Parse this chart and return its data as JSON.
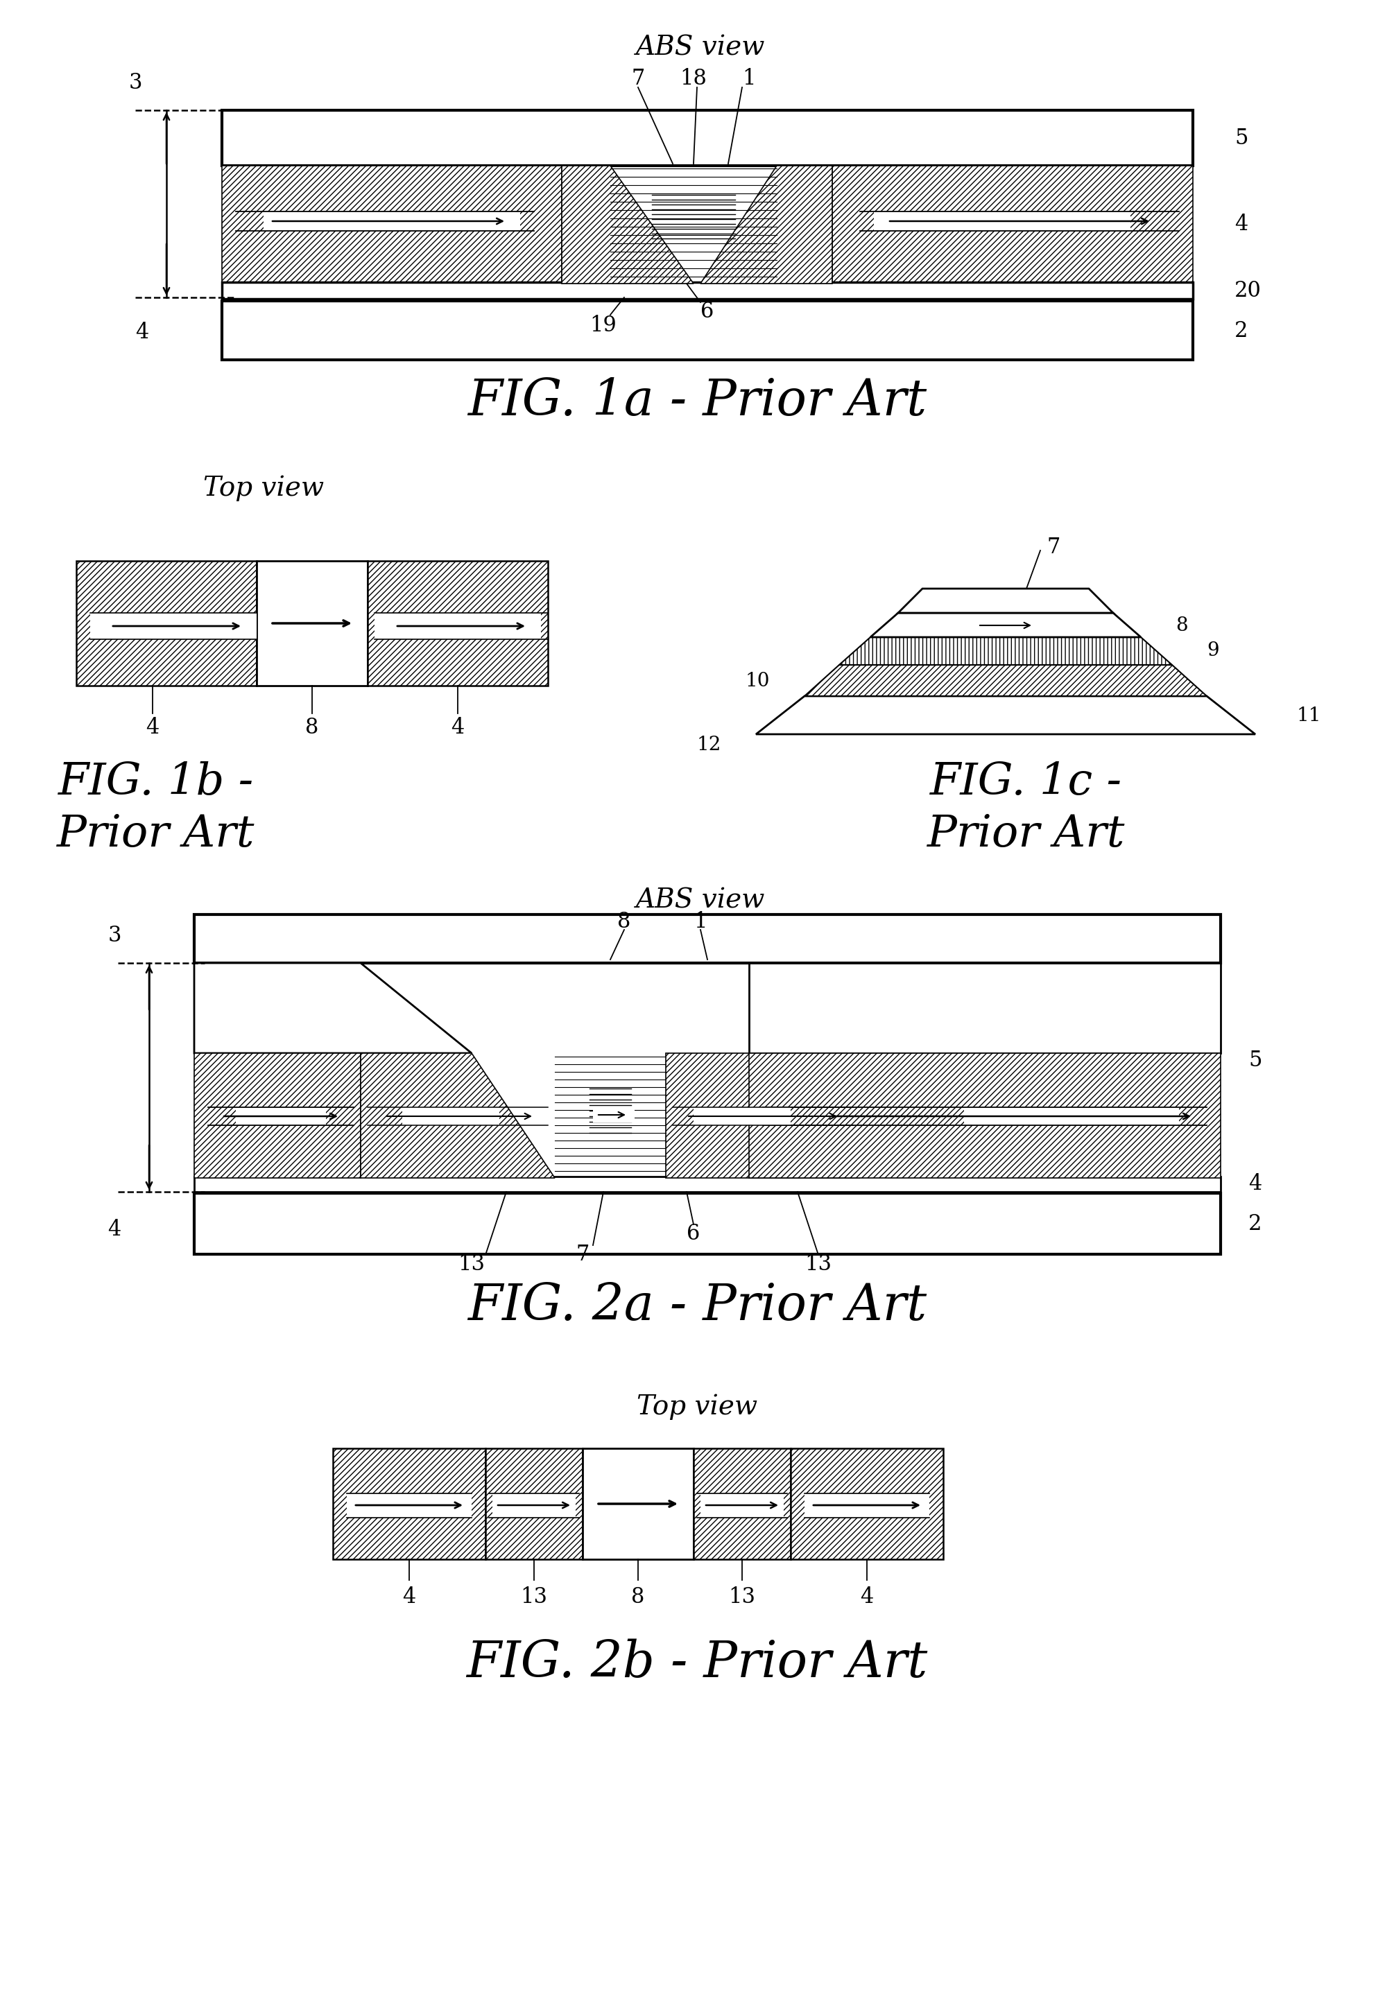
{
  "bg_color": "#ffffff",
  "fig1a_abs_title": "ABS view",
  "fig1a_caption": "FIG. 1a - Prior Art",
  "fig1b_top_title": "Top view",
  "fig1b_caption_line1": "FIG. 1b -",
  "fig1b_caption_line2": "Prior Art",
  "fig1c_caption_line1": "FIG. 1c -",
  "fig1c_caption_line2": "Prior Art",
  "fig2a_abs_title": "ABS view",
  "fig2a_caption": "FIG. 2a - Prior Art",
  "fig2b_top_title": "Top view",
  "fig2b_caption": "FIG. 2b - Prior Art",
  "labels_1a": [
    "7",
    "18",
    "1",
    "5",
    "4",
    "20",
    "2",
    "3",
    "4",
    "6",
    "19"
  ],
  "labels_1b": [
    "4",
    "8",
    "4"
  ],
  "labels_1c": [
    "7",
    "8",
    "9",
    "10",
    "11",
    "12"
  ],
  "labels_2a": [
    "8",
    "1",
    "5",
    "4",
    "2",
    "3",
    "4",
    "13",
    "7",
    "6",
    "13"
  ],
  "labels_2b": [
    "4",
    "13",
    "8",
    "13",
    "4"
  ]
}
